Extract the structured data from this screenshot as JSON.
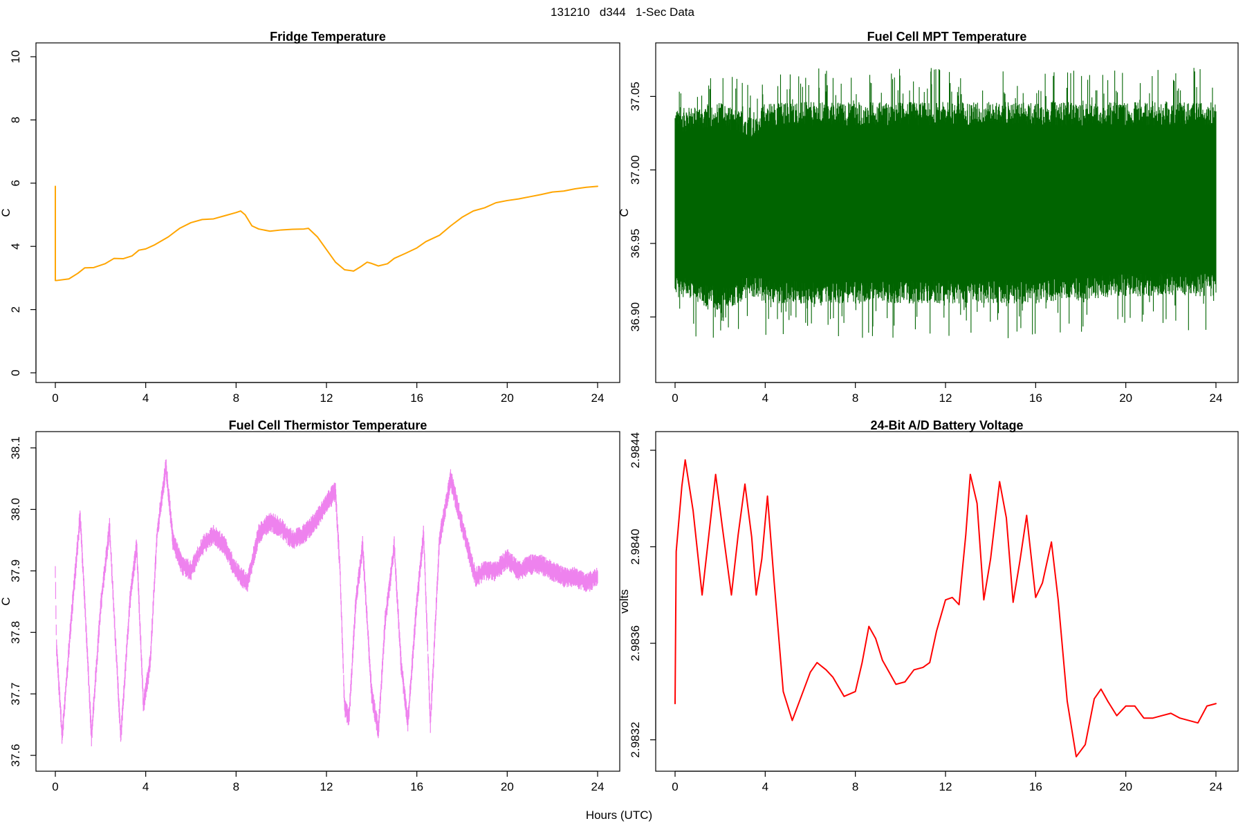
{
  "figure": {
    "suptitle": "131210   d344   1-Sec Data",
    "xlabel": "Hours (UTC)"
  },
  "chart_data": [
    {
      "id": "fridge",
      "type": "line",
      "title": "Fridge Temperature",
      "ylabel": "C",
      "xlabel": "Hours (UTC)",
      "color": "#FFA500",
      "xlim": [
        0,
        24
      ],
      "ylim": [
        0,
        10
      ],
      "xticks": [
        0,
        4,
        8,
        12,
        16,
        20,
        24
      ],
      "yticks": [
        0,
        2,
        4,
        6,
        8,
        10
      ],
      "noise": 0,
      "grid": false,
      "series": [
        {
          "name": "Fridge Temperature",
          "x": [
            0,
            0,
            0.05,
            0.6,
            1.0,
            1.3,
            1.7,
            2.2,
            2.6,
            3.0,
            3.4,
            3.7,
            4.0,
            4.4,
            5.0,
            5.5,
            6.0,
            6.5,
            7.0,
            7.5,
            8.0,
            8.2,
            8.4,
            8.7,
            9.0,
            9.5,
            10.0,
            10.5,
            11.0,
            11.2,
            11.6,
            12.0,
            12.4,
            12.8,
            13.2,
            13.5,
            13.8,
            14.0,
            14.3,
            14.7,
            15.0,
            15.5,
            16.0,
            16.4,
            17.0,
            17.5,
            18.0,
            18.5,
            19.0,
            19.5,
            20.0,
            20.5,
            21.0,
            21.5,
            22.0,
            22.5,
            23.0,
            23.5,
            24.0
          ],
          "y": [
            5.9,
            2.92,
            2.92,
            2.97,
            3.15,
            3.32,
            3.33,
            3.45,
            3.62,
            3.61,
            3.7,
            3.88,
            3.92,
            4.05,
            4.3,
            4.57,
            4.75,
            4.85,
            4.87,
            4.97,
            5.07,
            5.12,
            5.0,
            4.65,
            4.55,
            4.48,
            4.52,
            4.54,
            4.55,
            4.57,
            4.3,
            3.9,
            3.5,
            3.26,
            3.22,
            3.35,
            3.5,
            3.46,
            3.38,
            3.45,
            3.62,
            3.78,
            3.95,
            4.15,
            4.35,
            4.65,
            4.92,
            5.12,
            5.22,
            5.38,
            5.45,
            5.5,
            5.57,
            5.64,
            5.72,
            5.75,
            5.82,
            5.87,
            5.9
          ],
          "ylow": [],
          "yhigh": []
        }
      ]
    },
    {
      "id": "mpt",
      "type": "line",
      "title": "Fuel Cell MPT Temperature",
      "ylabel": "C",
      "xlabel": "Hours (UTC)",
      "color": "#006400",
      "xlim": [
        0,
        24
      ],
      "ylim": [
        36.862,
        37.077
      ],
      "xticks": [
        0,
        4,
        8,
        12,
        16,
        20,
        24
      ],
      "yticks": [
        36.9,
        36.95,
        37.0,
        37.05
      ],
      "ytick_labels": [
        "36.90",
        "36.95",
        "37.00",
        "37.05"
      ],
      "noise": 0.018,
      "grid": false,
      "series": [
        {
          "name": "Fuel Cell MPT Temperature",
          "x": [
            0,
            2,
            3.6,
            4,
            8,
            12,
            16,
            20,
            24
          ],
          "y": [
            36.975,
            36.975,
            36.975,
            36.975,
            36.975,
            36.975,
            36.975,
            36.975,
            36.975
          ],
          "ylow": [
            36.93,
            36.92,
            36.93,
            36.925,
            36.925,
            36.925,
            36.925,
            36.93,
            36.93
          ],
          "yhigh": [
            37.025,
            37.03,
            37.02,
            37.03,
            37.03,
            37.03,
            37.03,
            37.03,
            37.03
          ]
        }
      ]
    },
    {
      "id": "thermistor",
      "type": "line",
      "title": "Fuel Cell Thermistor Temperature",
      "ylabel": "C",
      "xlabel": "Hours (UTC)",
      "color": "#EE82EE",
      "xlim": [
        0,
        24
      ],
      "ylim": [
        37.59,
        38.104
      ],
      "xticks": [
        0,
        4,
        8,
        12,
        16,
        20,
        24
      ],
      "yticks": [
        37.6,
        37.7,
        37.8,
        37.9,
        38.0,
        38.1
      ],
      "ytick_labels": [
        "37.6",
        "37.7",
        "37.8",
        "37.9",
        "38.0",
        "38.1"
      ],
      "noise": 0.012,
      "grid": false,
      "series": [
        {
          "name": "Fuel Cell Thermistor Temperature",
          "x": [
            0,
            0.05,
            0.3,
            0.7,
            1.1,
            1.4,
            1.6,
            2.0,
            2.4,
            2.7,
            2.9,
            3.3,
            3.6,
            3.9,
            4.2,
            4.5,
            4.9,
            5.2,
            5.6,
            6.0,
            6.5,
            7.0,
            7.5,
            8.0,
            8.5,
            9.0,
            9.5,
            10.0,
            10.5,
            11.0,
            11.5,
            12.0,
            12.4,
            12.6,
            12.8,
            13.0,
            13.3,
            13.6,
            14.0,
            14.3,
            14.6,
            15.0,
            15.3,
            15.6,
            16.0,
            16.3,
            16.6,
            17.0,
            17.5,
            17.9,
            18.3,
            18.6,
            19.0,
            19.5,
            20.0,
            20.5,
            21.0,
            21.5,
            22.0,
            22.5,
            23.0,
            23.5,
            24.0
          ],
          "y": [
            37.9,
            37.78,
            37.63,
            37.82,
            37.99,
            37.78,
            37.63,
            37.84,
            37.97,
            37.76,
            37.63,
            37.85,
            37.94,
            37.68,
            37.75,
            37.96,
            38.07,
            37.95,
            37.91,
            37.9,
            37.94,
            37.96,
            37.94,
            37.9,
            37.88,
            37.96,
            37.98,
            37.97,
            37.95,
            37.96,
            37.98,
            38.01,
            38.03,
            37.9,
            37.68,
            37.66,
            37.85,
            37.94,
            37.7,
            37.64,
            37.82,
            37.94,
            37.75,
            37.65,
            37.85,
            37.96,
            37.65,
            37.95,
            38.05,
            37.99,
            37.93,
            37.89,
            37.9,
            37.9,
            37.92,
            37.9,
            37.91,
            37.91,
            37.9,
            37.89,
            37.89,
            37.88,
            37.89
          ],
          "ylow": [],
          "yhigh": []
        }
      ]
    },
    {
      "id": "battery",
      "type": "line",
      "title": "24-Bit A/D Battery Voltage",
      "ylabel": "volts",
      "xlabel": "Hours (UTC)",
      "color": "#FF0000",
      "xlim": [
        0,
        24
      ],
      "ylim": [
        2.98311,
        2.98442
      ],
      "xticks": [
        0,
        4,
        8,
        12,
        16,
        20,
        24
      ],
      "yticks": [
        2.9832,
        2.9836,
        2.984,
        2.9844
      ],
      "ytick_labels": [
        "2.9832",
        "2.9836",
        "2.9840",
        "2.9844"
      ],
      "noise": 0,
      "grid": false,
      "series": [
        {
          "name": "24-Bit A/D Battery Voltage",
          "x": [
            0,
            0.05,
            0.3,
            0.45,
            0.8,
            1.2,
            1.5,
            1.8,
            2.1,
            2.5,
            2.8,
            3.1,
            3.4,
            3.6,
            3.85,
            4.1,
            4.4,
            4.8,
            5.2,
            5.6,
            6.0,
            6.3,
            6.7,
            7.0,
            7.5,
            8.0,
            8.3,
            8.6,
            8.9,
            9.2,
            9.5,
            9.8,
            10.2,
            10.6,
            11.0,
            11.3,
            11.6,
            12.0,
            12.3,
            12.6,
            12.9,
            13.1,
            13.4,
            13.7,
            14.0,
            14.4,
            14.7,
            15.0,
            15.3,
            15.6,
            16.0,
            16.3,
            16.7,
            17.0,
            17.4,
            17.8,
            18.2,
            18.6,
            18.9,
            19.2,
            19.6,
            20.0,
            20.4,
            20.8,
            21.2,
            21.6,
            22.0,
            22.4,
            22.8,
            23.2,
            23.6,
            24.0
          ],
          "y": [
            2.98335,
            2.98398,
            2.98425,
            2.98436,
            2.98415,
            2.9838,
            2.98405,
            2.9843,
            2.98408,
            2.9838,
            2.98405,
            2.98426,
            2.98404,
            2.9838,
            2.98395,
            2.98421,
            2.98385,
            2.9834,
            2.98328,
            2.98338,
            2.98348,
            2.98352,
            2.98349,
            2.98346,
            2.98338,
            2.9834,
            2.98352,
            2.98367,
            2.98362,
            2.98353,
            2.98348,
            2.98343,
            2.98344,
            2.98349,
            2.9835,
            2.98352,
            2.98365,
            2.98378,
            2.98379,
            2.98376,
            2.98405,
            2.9843,
            2.98418,
            2.98378,
            2.98395,
            2.98427,
            2.98412,
            2.98377,
            2.98394,
            2.98413,
            2.98379,
            2.98385,
            2.98402,
            2.98378,
            2.98336,
            2.98313,
            2.98318,
            2.98337,
            2.98341,
            2.98336,
            2.9833,
            2.98334,
            2.98334,
            2.98329,
            2.98329,
            2.9833,
            2.98331,
            2.98329,
            2.98328,
            2.98327,
            2.98334,
            2.98335
          ],
          "ylow": [],
          "yhigh": []
        }
      ]
    }
  ]
}
